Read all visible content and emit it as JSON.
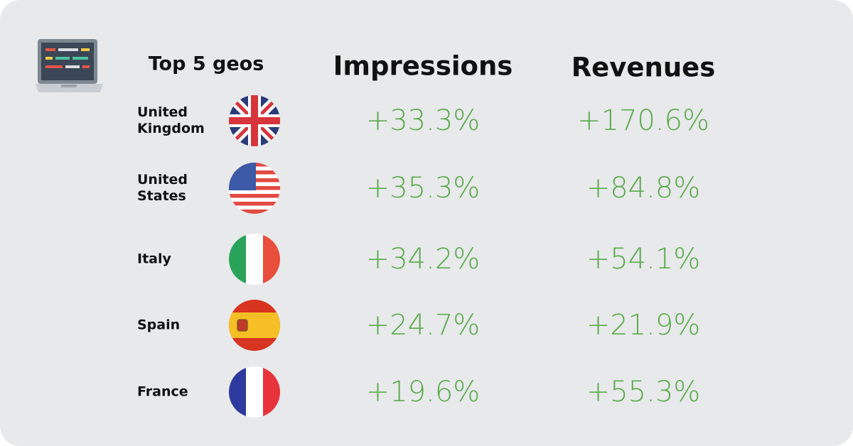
{
  "header": {
    "geo_title": "Top 5 geos",
    "impressions_title": "Impressions",
    "revenues_title": "Revenues"
  },
  "rows": [
    {
      "country": "United Kingdom",
      "impressions": "+33.3%",
      "revenues": "+170.6%"
    },
    {
      "country": "United States",
      "impressions": "+35.3%",
      "revenues": "+84.8%"
    },
    {
      "country": "Italy",
      "impressions": "+34.2%",
      "revenues": "+54.1%"
    },
    {
      "country": "Spain",
      "impressions": "+24.7%",
      "revenues": "+21.9%"
    },
    {
      "country": "France",
      "impressions": "+19.6%",
      "revenues": "+55.3%"
    }
  ]
}
